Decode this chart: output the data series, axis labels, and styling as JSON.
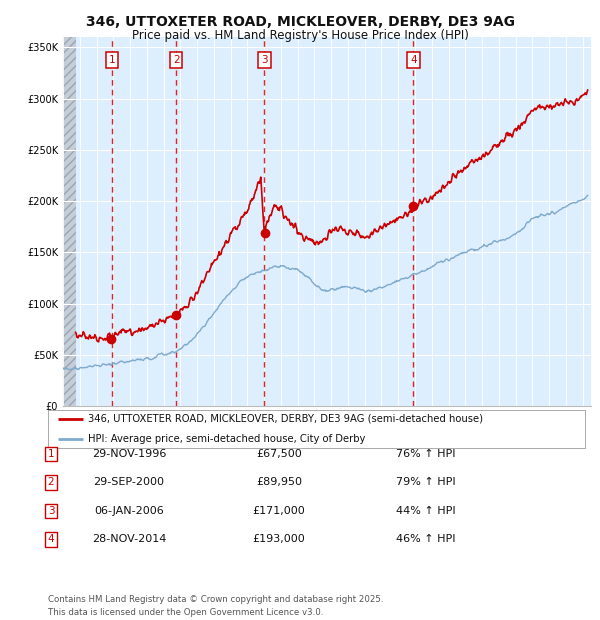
{
  "title": "346, UTTOXETER ROAD, MICKLEOVER, DERBY, DE3 9AG",
  "subtitle": "Price paid vs. HM Land Registry's House Price Index (HPI)",
  "legend_line1": "346, UTTOXETER ROAD, MICKLEOVER, DERBY, DE3 9AG (semi-detached house)",
  "legend_line2": "HPI: Average price, semi-detached house, City of Derby",
  "footer1": "Contains HM Land Registry data © Crown copyright and database right 2025.",
  "footer2": "This data is licensed under the Open Government Licence v3.0.",
  "sales": [
    {
      "label": "1",
      "date_str": "29-NOV-1996",
      "price": 67500,
      "date_num": 1996.91
    },
    {
      "label": "2",
      "date_str": "29-SEP-2000",
      "price": 89950,
      "date_num": 2000.75
    },
    {
      "label": "3",
      "date_str": "06-JAN-2006",
      "price": 171000,
      "date_num": 2006.02
    },
    {
      "label": "4",
      "date_str": "28-NOV-2014",
      "price": 193000,
      "date_num": 2014.91
    }
  ],
  "table_rows": [
    [
      "1",
      "29-NOV-1996",
      "£67,500",
      "76% ↑ HPI"
    ],
    [
      "2",
      "29-SEP-2000",
      "£89,950",
      "79% ↑ HPI"
    ],
    [
      "3",
      "06-JAN-2006",
      "£171,000",
      "44% ↑ HPI"
    ],
    [
      "4",
      "28-NOV-2014",
      "£193,000",
      "46% ↑ HPI"
    ]
  ],
  "ylim": [
    0,
    360000
  ],
  "xlim_start": 1994.0,
  "xlim_end": 2025.5,
  "hatch_region_end": 1994.75,
  "plot_bg": "#ddeeff",
  "red_color": "#cc0000",
  "blue_color": "#7faacc",
  "grid_color": "#ffffff",
  "vline_color": "#dd0000"
}
